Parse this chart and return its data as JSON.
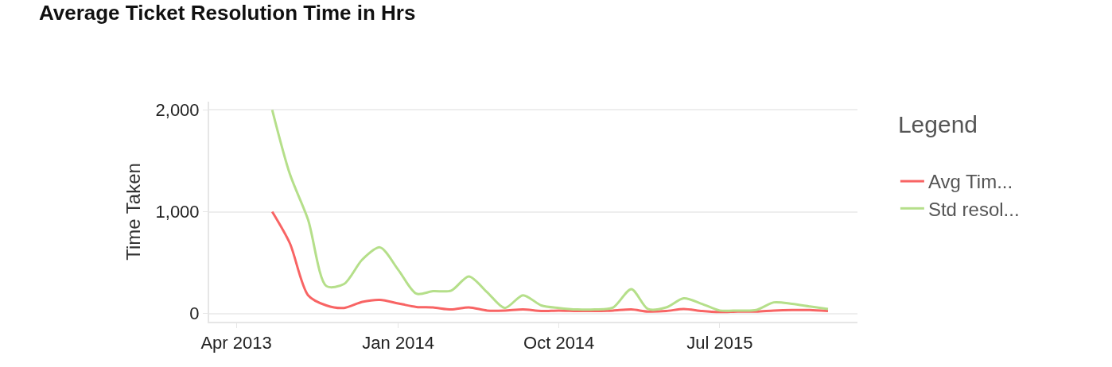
{
  "chart_data": {
    "type": "line",
    "title": "Average Ticket Resolution Time in Hrs",
    "ylabel": "Time Taken",
    "legend_title": "Legend",
    "x": [
      "2013-06",
      "2013-07",
      "2013-08",
      "2013-09",
      "2013-10",
      "2013-11",
      "2013-12",
      "2014-01",
      "2014-02",
      "2014-03",
      "2014-04",
      "2014-05",
      "2014-06",
      "2014-07",
      "2014-08",
      "2014-09",
      "2014-10",
      "2014-11",
      "2014-12",
      "2015-01",
      "2015-02",
      "2015-03",
      "2015-04",
      "2015-05",
      "2015-06",
      "2015-07",
      "2015-08",
      "2015-09",
      "2015-10",
      "2015-11",
      "2015-12",
      "2016-01"
    ],
    "series": [
      {
        "name": "Avg Tim...",
        "color": "#f86464",
        "values": [
          1000,
          690,
          180,
          80,
          55,
          115,
          135,
          100,
          65,
          60,
          40,
          60,
          30,
          30,
          40,
          25,
          30,
          25,
          25,
          30,
          40,
          20,
          25,
          45,
          25,
          15,
          20,
          20,
          30,
          35,
          35,
          25
        ]
      },
      {
        "name": "Std resol...",
        "color": "#b5df8a",
        "values": [
          2000,
          1370,
          920,
          270,
          290,
          530,
          650,
          430,
          195,
          220,
          225,
          365,
          210,
          55,
          180,
          80,
          55,
          40,
          40,
          60,
          240,
          45,
          60,
          150,
          95,
          30,
          30,
          35,
          110,
          95,
          70,
          45
        ]
      }
    ],
    "xlim": [
      "2013-02-14",
      "2016-02-20"
    ],
    "xticks": [
      {
        "value": "2013-04-01",
        "label": "Apr 2013"
      },
      {
        "value": "2014-01-01",
        "label": "Jan 2014"
      },
      {
        "value": "2014-10-01",
        "label": "Oct 2014"
      },
      {
        "value": "2015-07-01",
        "label": "Jul 2015"
      }
    ],
    "ylim": [
      -80,
      2080
    ],
    "yticks": [
      {
        "value": 0,
        "label": "0"
      },
      {
        "value": 1000,
        "label": "1,000"
      },
      {
        "value": 2000,
        "label": "2,000"
      }
    ],
    "grid": "y",
    "legend": "right",
    "marker": "none",
    "line_style": "solid"
  }
}
